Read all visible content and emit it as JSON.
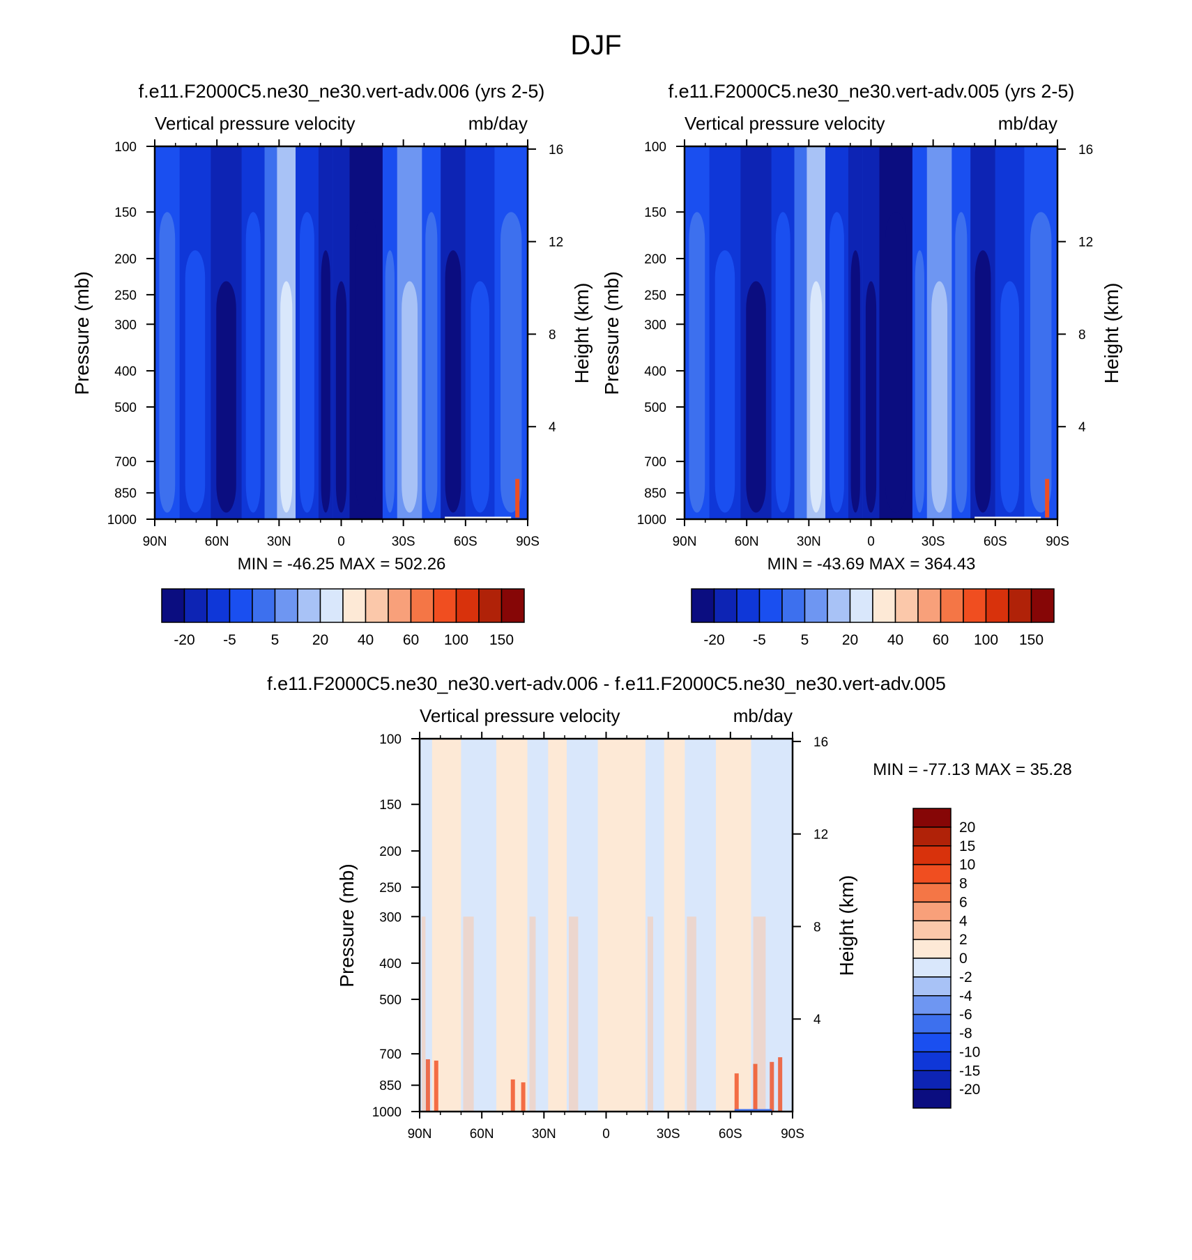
{
  "figure_title": "DJF",
  "scale_colors": [
    "#0b0d80",
    "#0d24b4",
    "#0f37d8",
    "#1a4ff0",
    "#3d70ee",
    "#6e96f2",
    "#a8c2f6",
    "#d9e7fb",
    "#fde9d6",
    "#fbc8aa",
    "#f8a07a",
    "#f47646",
    "#f04e20",
    "#d8320c",
    "#b02208",
    "#860606"
  ],
  "charts": [
    {
      "id": "top-left",
      "title": "f.e11.F2000C5.ne30_ne30.vert-adv.006 (yrs 2-5)",
      "left_string": "Vertical pressure velocity",
      "right_string": "mb/day",
      "ylabel": "Pressure (mb)",
      "ylabel_right": "Height (km)",
      "stats": "MIN = -46.25  MAX = 502.26"
    },
    {
      "id": "top-right",
      "title": "f.e11.F2000C5.ne30_ne30.vert-adv.005 (yrs 2-5)",
      "left_string": "Vertical pressure velocity",
      "right_string": "mb/day",
      "ylabel": "Pressure (mb)",
      "ylabel_right": "Height (km)",
      "stats": "MIN = -43.69  MAX = 364.43"
    },
    {
      "id": "bottom",
      "title": "f.e11.F2000C5.ne30_ne30.vert-adv.006 - f.e11.F2000C5.ne30_ne30.vert-adv.005",
      "left_string": "Vertical pressure velocity",
      "right_string": "mb/day",
      "ylabel": "Pressure (mb)",
      "ylabel_right": "Height (km)",
      "stats": "MIN = -77.13  MAX =  35.28"
    }
  ],
  "chart_data": [
    {
      "type": "heatmap",
      "title": "f.e11.F2000C5.ne30_ne30.vert-adv.006 (yrs 2-5)",
      "xlabel": "",
      "ylabel": "Pressure (mb)",
      "x_ticks": [
        "90N",
        "60N",
        "30N",
        "0",
        "30S",
        "60S",
        "90S"
      ],
      "x_values": [
        90,
        60,
        30,
        0,
        -30,
        -60,
        -90
      ],
      "xlim": [
        90,
        -90
      ],
      "y_ticks": [
        100,
        150,
        200,
        250,
        300,
        400,
        500,
        700,
        850,
        1000
      ],
      "ylim": [
        1000,
        100
      ],
      "y_scale": "log",
      "y2_ticks": [
        4,
        8,
        12,
        16
      ],
      "y2_label": "Height (km)",
      "columns": [
        {
          "from": 90,
          "to": 78,
          "level": 3
        },
        {
          "from": 78,
          "to": 63,
          "level": 2
        },
        {
          "from": 63,
          "to": 48,
          "level": 1
        },
        {
          "from": 48,
          "to": 37,
          "level": 2
        },
        {
          "from": 37,
          "to": 31,
          "level": 4
        },
        {
          "from": 31,
          "to": 22,
          "level": 6
        },
        {
          "from": 22,
          "to": 11,
          "level": 2
        },
        {
          "from": 11,
          "to": 4,
          "level": 1
        },
        {
          "from": 4,
          "to": -4,
          "level": 1
        },
        {
          "from": -4,
          "to": -20,
          "level": 0
        },
        {
          "from": -20,
          "to": -27,
          "level": 3
        },
        {
          "from": -27,
          "to": -39,
          "level": 5
        },
        {
          "from": -39,
          "to": -48,
          "level": 3
        },
        {
          "from": -48,
          "to": -60,
          "level": 1
        },
        {
          "from": -60,
          "to": -74,
          "level": 2
        },
        {
          "from": -74,
          "to": -90,
          "level": 3
        }
      ],
      "colorbar": {
        "labels": [
          "-20",
          "-5",
          "5",
          "20",
          "40",
          "60",
          "100",
          "150"
        ],
        "orientation": "horizontal"
      },
      "min": -46.25,
      "max": 502.26
    },
    {
      "type": "heatmap",
      "title": "f.e11.F2000C5.ne30_ne30.vert-adv.005 (yrs 2-5)",
      "xlabel": "",
      "ylabel": "Pressure (mb)",
      "x_ticks": [
        "90N",
        "60N",
        "30N",
        "0",
        "30S",
        "60S",
        "90S"
      ],
      "x_values": [
        90,
        60,
        30,
        0,
        -30,
        -60,
        -90
      ],
      "xlim": [
        90,
        -90
      ],
      "y_ticks": [
        100,
        150,
        200,
        250,
        300,
        400,
        500,
        700,
        850,
        1000
      ],
      "ylim": [
        1000,
        100
      ],
      "y_scale": "log",
      "y2_ticks": [
        4,
        8,
        12,
        16
      ],
      "y2_label": "Height (km)",
      "columns": [
        {
          "from": 90,
          "to": 78,
          "level": 3
        },
        {
          "from": 78,
          "to": 63,
          "level": 2
        },
        {
          "from": 63,
          "to": 48,
          "level": 1
        },
        {
          "from": 48,
          "to": 37,
          "level": 2
        },
        {
          "from": 37,
          "to": 31,
          "level": 4
        },
        {
          "from": 31,
          "to": 22,
          "level": 6
        },
        {
          "from": 22,
          "to": 11,
          "level": 2
        },
        {
          "from": 11,
          "to": 4,
          "level": 1
        },
        {
          "from": 4,
          "to": -4,
          "level": 1
        },
        {
          "from": -4,
          "to": -20,
          "level": 0
        },
        {
          "from": -20,
          "to": -27,
          "level": 3
        },
        {
          "from": -27,
          "to": -39,
          "level": 5
        },
        {
          "from": -39,
          "to": -48,
          "level": 3
        },
        {
          "from": -48,
          "to": -60,
          "level": 1
        },
        {
          "from": -60,
          "to": -74,
          "level": 2
        },
        {
          "from": -74,
          "to": -90,
          "level": 3
        }
      ],
      "colorbar": {
        "labels": [
          "-20",
          "-5",
          "5",
          "20",
          "40",
          "60",
          "100",
          "150"
        ],
        "orientation": "horizontal"
      },
      "min": -43.69,
      "max": 364.43
    },
    {
      "type": "heatmap",
      "title": "f.e11.F2000C5.ne30_ne30.vert-adv.006 - f.e11.F2000C5.ne30_ne30.vert-adv.005",
      "xlabel": "",
      "ylabel": "Pressure (mb)",
      "x_ticks": [
        "90N",
        "60N",
        "30N",
        "0",
        "30S",
        "60S",
        "90S"
      ],
      "x_values": [
        90,
        60,
        30,
        0,
        -30,
        -60,
        -90
      ],
      "xlim": [
        90,
        -90
      ],
      "y_ticks": [
        100,
        150,
        200,
        250,
        300,
        400,
        500,
        700,
        850,
        1000
      ],
      "ylim": [
        1000,
        100
      ],
      "y_scale": "log",
      "y2_ticks": [
        4,
        8,
        12,
        16
      ],
      "y2_label": "Height (km)",
      "columns": [
        {
          "from": 90,
          "to": 84,
          "level": 7
        },
        {
          "from": 84,
          "to": 70,
          "level": 8
        },
        {
          "from": 70,
          "to": 53,
          "level": 7
        },
        {
          "from": 53,
          "to": 38,
          "level": 8
        },
        {
          "from": 38,
          "to": 28,
          "level": 7
        },
        {
          "from": 28,
          "to": 19,
          "level": 8
        },
        {
          "from": 19,
          "to": 4,
          "level": 7
        },
        {
          "from": 4,
          "to": -19,
          "level": 8
        },
        {
          "from": -19,
          "to": -28,
          "level": 7
        },
        {
          "from": -28,
          "to": -38,
          "level": 8
        },
        {
          "from": -38,
          "to": -53,
          "level": 7
        },
        {
          "from": -53,
          "to": -70,
          "level": 8
        },
        {
          "from": -70,
          "to": -90,
          "level": 7
        }
      ],
      "colorbar": {
        "labels": [
          "20",
          "15",
          "10",
          "8",
          "6",
          "4",
          "2",
          "0",
          "-2",
          "-4",
          "-6",
          "-8",
          "-10",
          "-15",
          "-20"
        ],
        "orientation": "vertical"
      },
      "min": -77.13,
      "max": 35.28
    }
  ]
}
